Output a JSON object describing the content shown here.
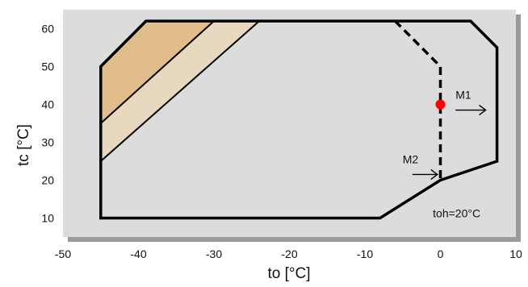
{
  "chart_data": {
    "type": "area",
    "xlabel": "to [°C]",
    "ylabel": "tc [°C]",
    "xlim": [
      -50,
      10
    ],
    "ylim": [
      5,
      65
    ],
    "xticks": [
      "-50",
      "-40",
      "-30",
      "-20",
      "-10",
      "0",
      "10"
    ],
    "yticks": [
      "10",
      "20",
      "30",
      "40",
      "50",
      "60"
    ],
    "xtick_values": [
      -50,
      -40,
      -30,
      -20,
      -10,
      0,
      10
    ],
    "ytick_values": [
      10,
      20,
      30,
      40,
      50,
      60
    ],
    "grid": false,
    "colors": {
      "plot_bg": "#dcdcdc",
      "shadow": "#9a9a9a",
      "outline": "#000000",
      "region_dark": "#e0bd8a",
      "region_light": "#e8d8c0",
      "point": "#ff0000"
    },
    "envelope": [
      {
        "x": -45,
        "y": 10
      },
      {
        "x": -45,
        "y": 50
      },
      {
        "x": -39,
        "y": 62
      },
      {
        "x": 4,
        "y": 62
      },
      {
        "x": 7.5,
        "y": 55
      },
      {
        "x": 7.5,
        "y": 25
      },
      {
        "x": 0,
        "y": 20
      },
      {
        "x": -8,
        "y": 10
      }
    ],
    "region_dark": [
      {
        "x": -45,
        "y": 50
      },
      {
        "x": -39,
        "y": 62
      },
      {
        "x": -30,
        "y": 62
      },
      {
        "x": -45,
        "y": 35
      }
    ],
    "region_light": [
      {
        "x": -45,
        "y": 35
      },
      {
        "x": -30,
        "y": 62
      },
      {
        "x": -24,
        "y": 62
      },
      {
        "x": -45,
        "y": 25
      }
    ],
    "lines": [
      {
        "name": "line_a",
        "points": [
          {
            "x": -45,
            "y": 35
          },
          {
            "x": -30,
            "y": 62
          }
        ]
      },
      {
        "name": "line_b",
        "points": [
          {
            "x": -45,
            "y": 25
          },
          {
            "x": -24,
            "y": 62
          }
        ]
      }
    ],
    "dashed_line": [
      {
        "x": -6,
        "y": 62
      },
      {
        "x": 0,
        "y": 50
      },
      {
        "x": 0,
        "y": 20
      }
    ],
    "operating_point": {
      "x": 0,
      "y": 40
    },
    "annotations": {
      "m1": {
        "label": "M1",
        "arrow_from": {
          "x": 2,
          "y": 38.5
        },
        "arrow_to": {
          "x": 6,
          "y": 38.5
        },
        "text_at": {
          "x": 2,
          "y": 41.5
        }
      },
      "m2": {
        "label": "M2",
        "arrow_from": {
          "x": -3.7,
          "y": 21.5
        },
        "arrow_to": {
          "x": -0.4,
          "y": 21.5
        },
        "text_at": {
          "x": -5,
          "y": 24.5
        }
      },
      "toh": {
        "label": "toh=20°C",
        "text_at": {
          "x": -1,
          "y": 10.2
        }
      }
    }
  }
}
